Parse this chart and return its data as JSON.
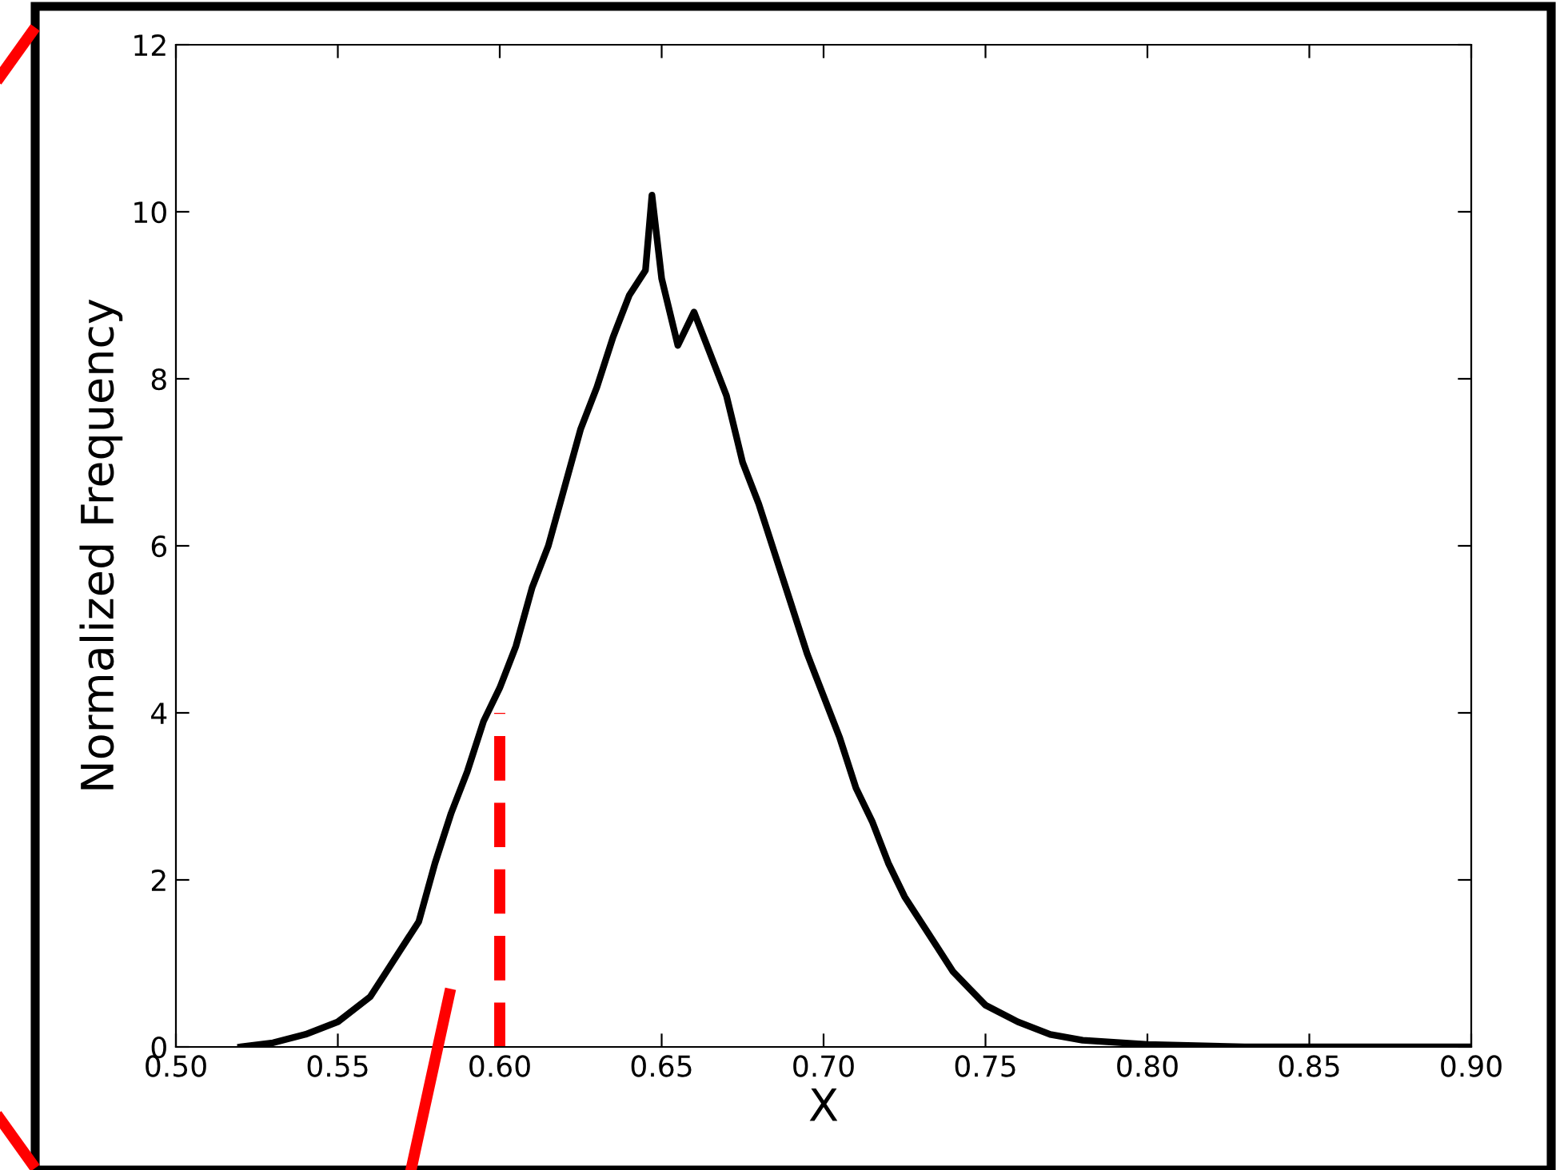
{
  "chart_data": {
    "type": "line",
    "xlabel": "X",
    "ylabel": "Normalized Frequency",
    "xlim": [
      0.5,
      0.9
    ],
    "xticks": [
      {
        "value": 0.5,
        "label": "0.50"
      },
      {
        "value": 0.55,
        "label": "0.55"
      },
      {
        "value": 0.6,
        "label": "0.60"
      },
      {
        "value": 0.65,
        "label": "0.65"
      },
      {
        "value": 0.7,
        "label": "0.70"
      },
      {
        "value": 0.75,
        "label": "0.75"
      },
      {
        "value": 0.8,
        "label": "0.80"
      },
      {
        "value": 0.85,
        "label": "0.85"
      },
      {
        "value": 0.9,
        "label": "0.90"
      }
    ],
    "ylim": [
      0,
      12
    ],
    "yticks": [
      0,
      2,
      4,
      6,
      8,
      10,
      12
    ],
    "grid": false,
    "legend": false,
    "series": [
      {
        "color": "#000000",
        "line_style": "solid",
        "x": [
          0.52,
          0.53,
          0.54,
          0.55,
          0.56,
          0.565,
          0.57,
          0.575,
          0.58,
          0.585,
          0.59,
          0.595,
          0.6,
          0.605,
          0.61,
          0.615,
          0.62,
          0.625,
          0.63,
          0.635,
          0.64,
          0.645,
          0.647,
          0.65,
          0.655,
          0.66,
          0.665,
          0.67,
          0.675,
          0.68,
          0.685,
          0.69,
          0.695,
          0.7,
          0.705,
          0.71,
          0.715,
          0.72,
          0.725,
          0.73,
          0.735,
          0.74,
          0.745,
          0.75,
          0.76,
          0.77,
          0.78,
          0.8,
          0.82,
          0.83,
          0.9
        ],
        "values": [
          0,
          0.05,
          0.15,
          0.3,
          0.6,
          0.9,
          1.2,
          1.5,
          2.2,
          2.8,
          3.3,
          3.9,
          4.3,
          4.8,
          5.5,
          6.0,
          6.7,
          7.4,
          7.9,
          8.5,
          9.0,
          9.3,
          10.2,
          9.2,
          8.4,
          8.8,
          8.3,
          7.8,
          7.0,
          6.5,
          5.9,
          5.3,
          4.7,
          4.2,
          3.7,
          3.1,
          2.7,
          2.2,
          1.8,
          1.5,
          1.2,
          0.9,
          0.7,
          0.5,
          0.3,
          0.15,
          0.08,
          0.03,
          0.01,
          0,
          0
        ]
      },
      {
        "color": "#ff0000",
        "line_style": "dashed",
        "x": [
          0.6,
          0.6
        ],
        "values": [
          0,
          4
        ]
      }
    ]
  }
}
